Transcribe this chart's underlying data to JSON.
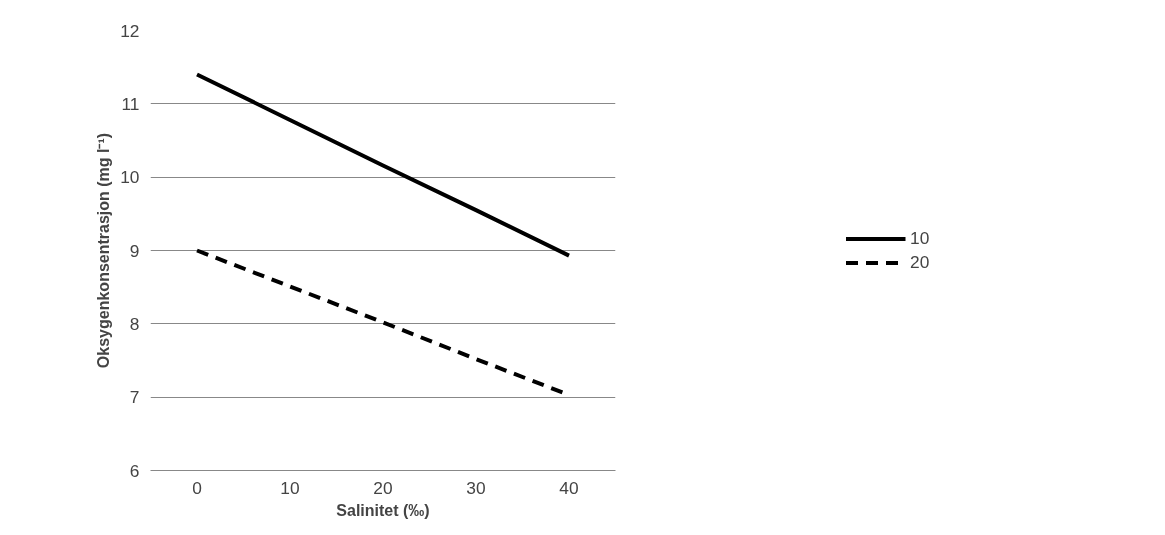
{
  "chart_data": {
    "type": "line",
    "xlabel": "Salinitet (‰)",
    "ylabel": "Oksygenkonsentrasjon (mg l⁻¹)",
    "categories": [
      "0",
      "10",
      "20",
      "30",
      "40"
    ],
    "series": [
      {
        "name": "10",
        "color": "#000000",
        "line_style": "solid",
        "values": [
          11.4,
          10.78,
          10.16,
          9.55,
          8.93
        ]
      },
      {
        "name": "20",
        "color": "#000000",
        "line_style": "dashed",
        "values": [
          9.0,
          8.51,
          8.02,
          7.52,
          7.03
        ]
      }
    ],
    "ylim": [
      6,
      12
    ],
    "yticks": [
      6,
      7,
      8,
      9,
      10,
      11,
      12
    ],
    "grid": "y",
    "legend": "right",
    "marker": "none"
  }
}
